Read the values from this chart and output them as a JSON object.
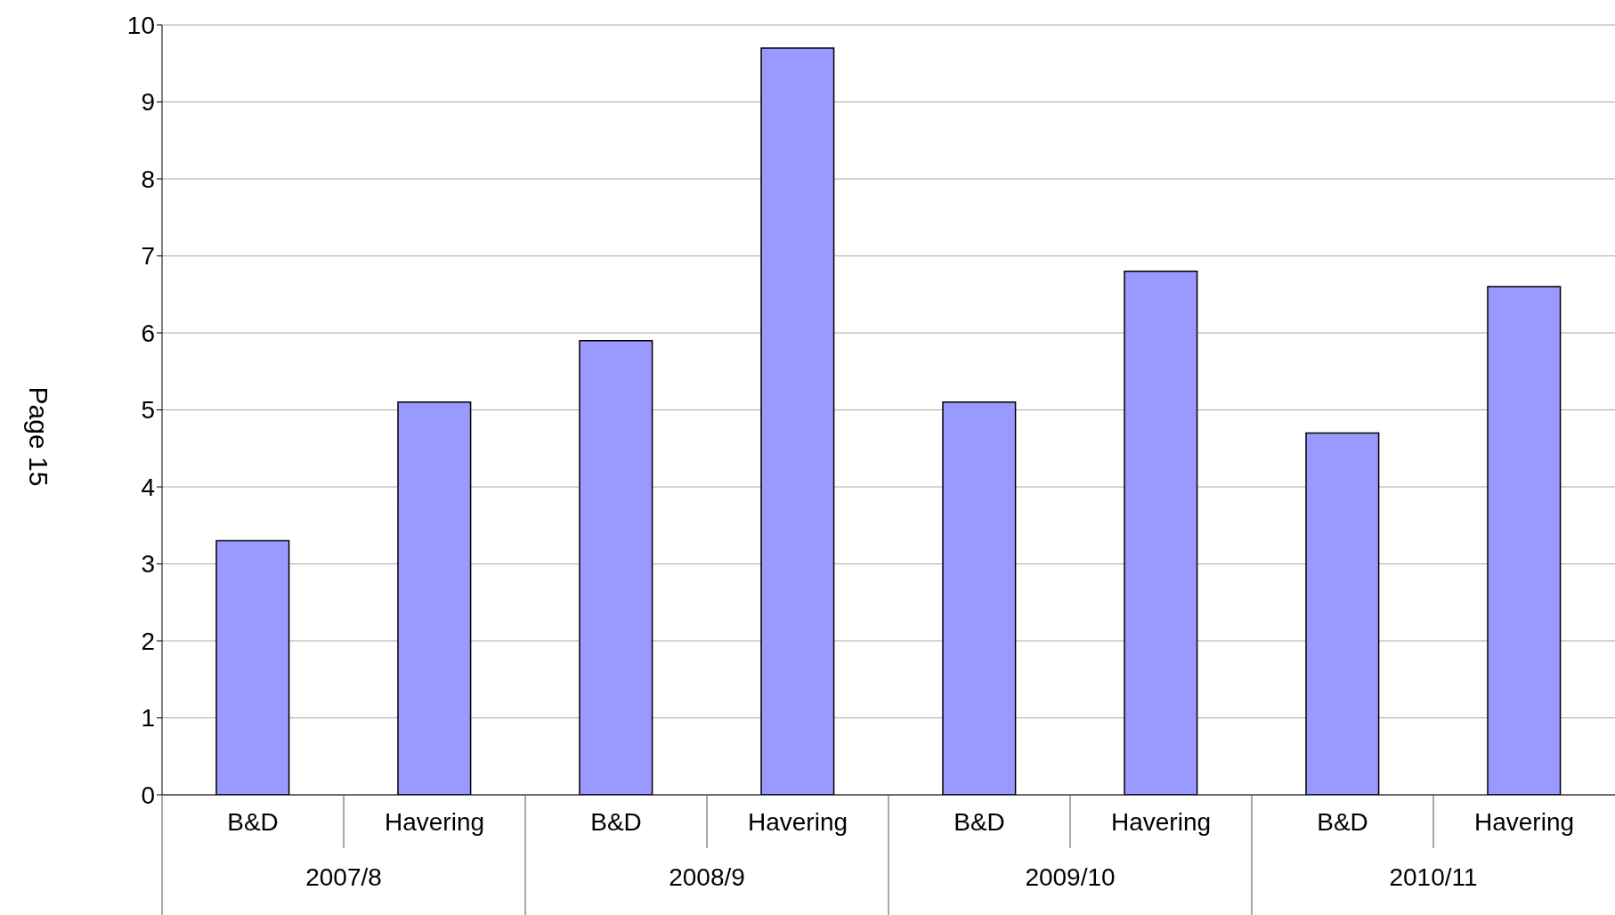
{
  "chart_data": {
    "type": "bar",
    "categories": [
      "B&D",
      "Havering",
      "B&D",
      "Havering",
      "B&D",
      "Havering",
      "B&D",
      "Havering"
    ],
    "values": [
      3.3,
      5.1,
      5.9,
      9.7,
      5.1,
      6.8,
      4.7,
      6.6
    ],
    "color": "#9999ff",
    "ylim": [
      0,
      10
    ],
    "yticks": [
      0,
      1,
      2,
      3,
      4,
      5,
      6,
      7,
      8,
      9,
      10
    ],
    "grid": "y",
    "annotations": [
      "Page 15",
      "2007/8",
      "2008/9",
      "2009/10",
      "2010/11"
    ]
  }
}
